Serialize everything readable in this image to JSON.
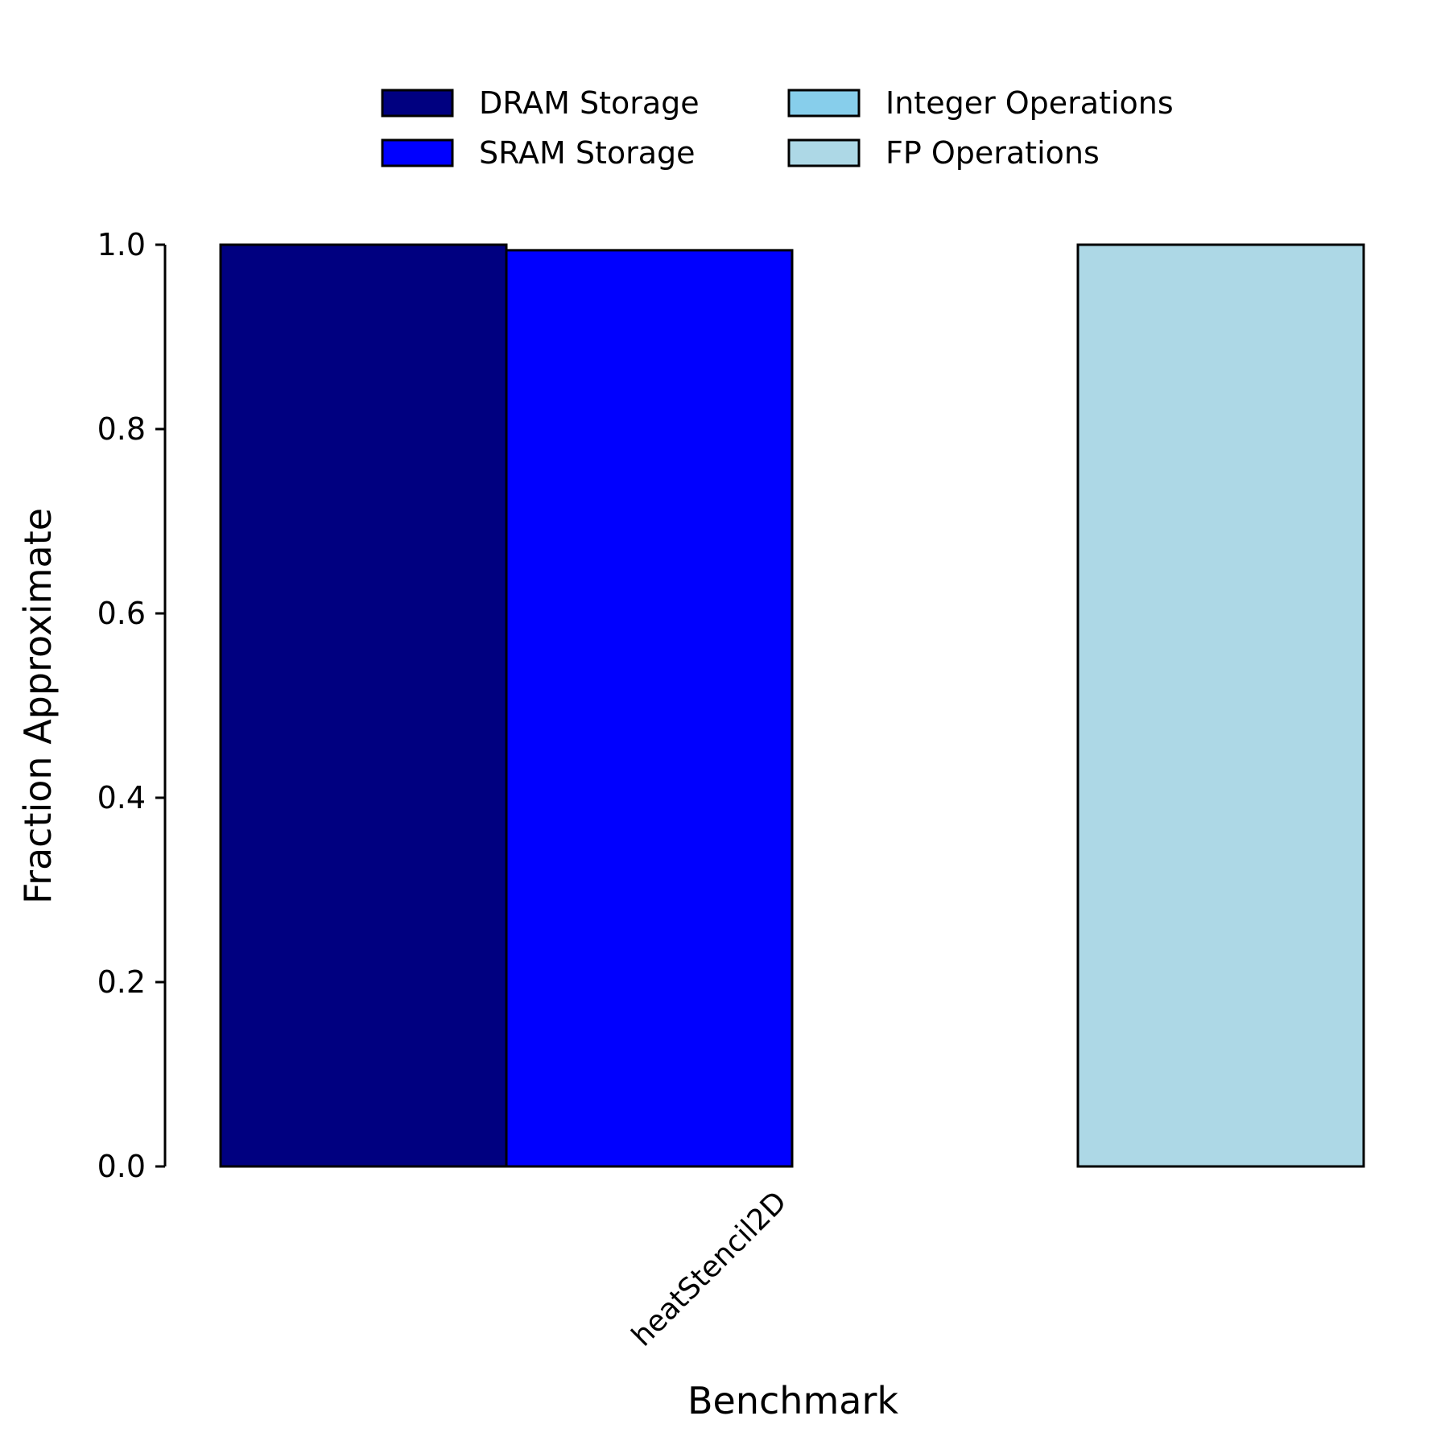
{
  "chart_data": {
    "type": "bar",
    "categories": [
      "heatStencil2D"
    ],
    "series": [
      {
        "name": "DRAM Storage",
        "values": [
          1.0
        ],
        "color": "#000080"
      },
      {
        "name": "SRAM Storage",
        "values": [
          0.994
        ],
        "color": "#0000FF"
      },
      {
        "name": "Integer Operations",
        "values": [
          0.0
        ],
        "color": "#87CEEB"
      },
      {
        "name": "FP Operations",
        "values": [
          1.0
        ],
        "color": "#ADD8E6"
      }
    ],
    "xlabel": "Benchmark",
    "ylabel": "Fraction Approximate",
    "ylim": [
      0,
      1
    ],
    "yticks": [
      "0.0",
      "0.2",
      "0.4",
      "0.6",
      "0.8",
      "1.0"
    ],
    "legend_position": "top",
    "grid": false
  }
}
